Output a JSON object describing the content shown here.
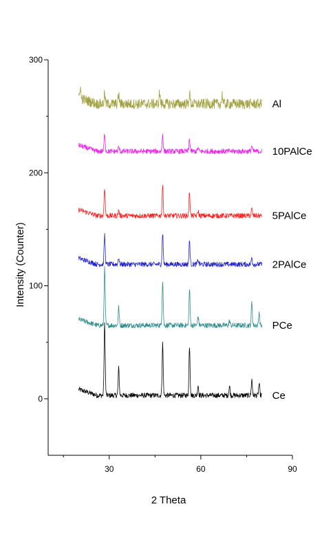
{
  "chart_data": {
    "type": "line",
    "title": "",
    "xlabel": "2 Theta",
    "ylabel": "Intensity (Counter)",
    "xlim": [
      10,
      90
    ],
    "ylim": [
      -50,
      300
    ],
    "x_ticks": [
      30,
      60,
      90
    ],
    "y_ticks": [
      0,
      100,
      200,
      300
    ],
    "x_tick_labels": [
      "30",
      "60",
      "90"
    ],
    "y_tick_labels": [
      "0",
      "100",
      "200",
      "300"
    ],
    "x_range": [
      20,
      80
    ],
    "grid": false,
    "legend": "none",
    "series": [
      {
        "name": "Ce",
        "color": "#000000",
        "baseline": 3,
        "peaks": [
          [
            28.5,
            64
          ],
          [
            33.1,
            24
          ],
          [
            47.5,
            46
          ],
          [
            56.3,
            44
          ],
          [
            59.1,
            9
          ],
          [
            69.4,
            8
          ],
          [
            76.7,
            14
          ],
          [
            79.1,
            10
          ]
        ]
      },
      {
        "name": "PCe",
        "color": "#2e8b8b",
        "baseline": 65,
        "peaks": [
          [
            28.5,
            50
          ],
          [
            33.1,
            16
          ],
          [
            47.5,
            40
          ],
          [
            56.3,
            32
          ],
          [
            59.1,
            8
          ],
          [
            69.4,
            4
          ],
          [
            76.7,
            20
          ],
          [
            79.1,
            12
          ]
        ]
      },
      {
        "name": "2PAlCe",
        "color": "#2222cc",
        "baseline": 119,
        "peaks": [
          [
            28.5,
            26
          ],
          [
            33.1,
            6
          ],
          [
            47.5,
            28
          ],
          [
            56.3,
            21
          ],
          [
            59.1,
            4
          ],
          [
            76.7,
            6
          ]
        ]
      },
      {
        "name": "5PAlCe",
        "color": "#ff2020",
        "baseline": 162,
        "peaks": [
          [
            28.5,
            25
          ],
          [
            33.1,
            5
          ],
          [
            47.5,
            27
          ],
          [
            56.3,
            21
          ],
          [
            59.1,
            4
          ],
          [
            76.7,
            6
          ]
        ]
      },
      {
        "name": "10PAlCe",
        "color": "#ee22ee",
        "baseline": 219,
        "peaks": [
          [
            28.5,
            16
          ],
          [
            33.1,
            4
          ],
          [
            47.5,
            15
          ],
          [
            56.3,
            11
          ],
          [
            59.1,
            3
          ],
          [
            76.7,
            5
          ]
        ]
      },
      {
        "name": "Al",
        "color": "#a0a040",
        "baseline": 261,
        "peaks": [
          [
            20.5,
            10
          ],
          [
            28.5,
            9
          ],
          [
            33.1,
            8
          ],
          [
            46.5,
            10
          ],
          [
            56.3,
            9
          ],
          [
            67.0,
            8
          ]
        ]
      }
    ]
  }
}
